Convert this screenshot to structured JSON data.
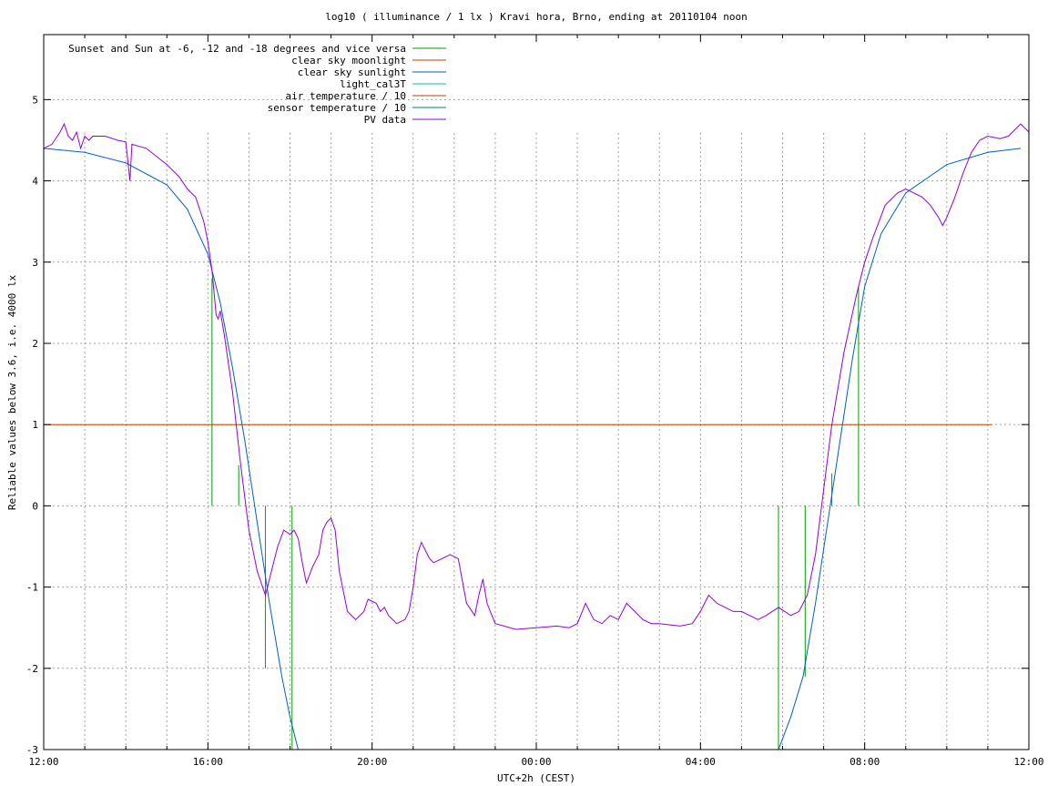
{
  "chart_data": {
    "type": "line",
    "title": "log10 ( illuminance / 1 lx ) Kravi hora, Brno, ending at 20110104 noon",
    "xlabel": "UTC+2h (CEST)",
    "ylabel": "Reliable values below 3.6, i.e. 4000 lx",
    "xlim": [
      0,
      24
    ],
    "ylim": [
      -3,
      5.8
    ],
    "grid": true,
    "legend_position": "top-left",
    "x_ticks": [
      {
        "x": 0,
        "label": "12:00"
      },
      {
        "x": 4,
        "label": "16:00"
      },
      {
        "x": 8,
        "label": "20:00"
      },
      {
        "x": 12,
        "label": "00:00"
      },
      {
        "x": 16,
        "label": "04:00"
      },
      {
        "x": 20,
        "label": "08:00"
      },
      {
        "x": 24,
        "label": "12:00"
      }
    ],
    "y_ticks": [
      {
        "y": -3,
        "label": "-3"
      },
      {
        "y": -2,
        "label": "-2"
      },
      {
        "y": -1,
        "label": "-1"
      },
      {
        "y": 0,
        "label": "0"
      },
      {
        "y": 1,
        "label": "1"
      },
      {
        "y": 2,
        "label": "2"
      },
      {
        "y": 3,
        "label": "3"
      },
      {
        "y": 4,
        "label": "4"
      },
      {
        "y": 5,
        "label": "5"
      }
    ],
    "series": [
      {
        "name": "Sunset and Sun at -6, -12 and -18 degrees and vice versa",
        "color": "#00a000",
        "style": "impulses",
        "base": 0,
        "points": [
          [
            4.1,
            2.8
          ],
          [
            4.75,
            0.5
          ],
          [
            5.4,
            -2.0
          ],
          [
            6.05,
            -3.0
          ],
          [
            17.9,
            -3.0
          ],
          [
            18.55,
            -2.1
          ],
          [
            19.2,
            0.4
          ],
          [
            19.85,
            2.7
          ]
        ]
      },
      {
        "name": "clear sky moonlight",
        "color": "#c04000",
        "points": [
          [
            0,
            1.0
          ],
          [
            23.1,
            1.0
          ]
        ]
      },
      {
        "name": "clear sky sunlight",
        "color": "#0060c0",
        "points": [
          [
            0,
            4.4
          ],
          [
            1,
            4.35
          ],
          [
            2,
            4.22
          ],
          [
            3,
            3.95
          ],
          [
            3.5,
            3.65
          ],
          [
            4.0,
            3.1
          ],
          [
            4.3,
            2.5
          ],
          [
            4.6,
            1.7
          ],
          [
            4.9,
            0.8
          ],
          [
            5.2,
            -0.2
          ],
          [
            5.5,
            -1.2
          ],
          [
            5.8,
            -2.1
          ],
          [
            6.0,
            -2.6
          ],
          [
            6.2,
            -3.0
          ],
          [
            17.9,
            -3.0
          ],
          [
            18.2,
            -2.6
          ],
          [
            18.5,
            -2.1
          ],
          [
            18.8,
            -1.2
          ],
          [
            19.1,
            -0.2
          ],
          [
            19.4,
            0.8
          ],
          [
            19.7,
            1.8
          ],
          [
            20.0,
            2.7
          ],
          [
            20.4,
            3.35
          ],
          [
            21,
            3.85
          ],
          [
            22,
            4.2
          ],
          [
            23,
            4.35
          ],
          [
            23.8,
            4.4
          ]
        ]
      },
      {
        "name": "light_cal3T",
        "color": "#00c0c0",
        "points": []
      },
      {
        "name": "air temperature / 10",
        "color": "#c04000",
        "points": []
      },
      {
        "name": "sensor temperature / 10",
        "color": "#008080",
        "points": []
      },
      {
        "name": "PV data",
        "color": "#9400d3",
        "points": [
          [
            0,
            4.4
          ],
          [
            0.2,
            4.45
          ],
          [
            0.4,
            4.6
          ],
          [
            0.5,
            4.7
          ],
          [
            0.6,
            4.55
          ],
          [
            0.7,
            4.5
          ],
          [
            0.8,
            4.6
          ],
          [
            0.9,
            4.4
          ],
          [
            1.0,
            4.55
          ],
          [
            1.1,
            4.5
          ],
          [
            1.2,
            4.55
          ],
          [
            1.5,
            4.55
          ],
          [
            1.8,
            4.5
          ],
          [
            2.0,
            4.48
          ],
          [
            2.1,
            4.0
          ],
          [
            2.15,
            4.45
          ],
          [
            2.5,
            4.4
          ],
          [
            3.0,
            4.2
          ],
          [
            3.3,
            4.05
          ],
          [
            3.5,
            3.9
          ],
          [
            3.7,
            3.8
          ],
          [
            3.9,
            3.5
          ],
          [
            4.0,
            3.25
          ],
          [
            4.1,
            2.9
          ],
          [
            4.2,
            2.35
          ],
          [
            4.25,
            2.3
          ],
          [
            4.3,
            2.4
          ],
          [
            4.4,
            2.1
          ],
          [
            4.6,
            1.4
          ],
          [
            4.8,
            0.5
          ],
          [
            5.0,
            -0.3
          ],
          [
            5.2,
            -0.8
          ],
          [
            5.4,
            -1.1
          ],
          [
            5.55,
            -0.8
          ],
          [
            5.7,
            -0.5
          ],
          [
            5.85,
            -0.3
          ],
          [
            6.0,
            -0.35
          ],
          [
            6.1,
            -0.3
          ],
          [
            6.2,
            -0.4
          ],
          [
            6.3,
            -0.7
          ],
          [
            6.4,
            -0.95
          ],
          [
            6.55,
            -0.75
          ],
          [
            6.7,
            -0.6
          ],
          [
            6.8,
            -0.3
          ],
          [
            6.9,
            -0.2
          ],
          [
            7.0,
            -0.15
          ],
          [
            7.1,
            -0.3
          ],
          [
            7.2,
            -0.8
          ],
          [
            7.4,
            -1.3
          ],
          [
            7.6,
            -1.4
          ],
          [
            7.8,
            -1.3
          ],
          [
            7.9,
            -1.15
          ],
          [
            8.1,
            -1.2
          ],
          [
            8.2,
            -1.3
          ],
          [
            8.3,
            -1.25
          ],
          [
            8.4,
            -1.35
          ],
          [
            8.6,
            -1.45
          ],
          [
            8.8,
            -1.4
          ],
          [
            8.9,
            -1.3
          ],
          [
            9.0,
            -1.0
          ],
          [
            9.1,
            -0.6
          ],
          [
            9.2,
            -0.45
          ],
          [
            9.4,
            -0.65
          ],
          [
            9.5,
            -0.7
          ],
          [
            9.7,
            -0.65
          ],
          [
            9.9,
            -0.6
          ],
          [
            10.1,
            -0.65
          ],
          [
            10.3,
            -1.2
          ],
          [
            10.5,
            -1.35
          ],
          [
            10.6,
            -1.1
          ],
          [
            10.7,
            -0.9
          ],
          [
            10.8,
            -1.2
          ],
          [
            11.0,
            -1.45
          ],
          [
            11.5,
            -1.52
          ],
          [
            12.0,
            -1.5
          ],
          [
            12.5,
            -1.48
          ],
          [
            12.8,
            -1.5
          ],
          [
            13.0,
            -1.45
          ],
          [
            13.2,
            -1.2
          ],
          [
            13.4,
            -1.4
          ],
          [
            13.6,
            -1.45
          ],
          [
            13.8,
            -1.35
          ],
          [
            14.0,
            -1.4
          ],
          [
            14.2,
            -1.2
          ],
          [
            14.4,
            -1.3
          ],
          [
            14.6,
            -1.4
          ],
          [
            14.8,
            -1.45
          ],
          [
            15.0,
            -1.45
          ],
          [
            15.5,
            -1.48
          ],
          [
            15.8,
            -1.45
          ],
          [
            16.0,
            -1.3
          ],
          [
            16.2,
            -1.1
          ],
          [
            16.4,
            -1.2
          ],
          [
            16.6,
            -1.25
          ],
          [
            16.8,
            -1.3
          ],
          [
            17.0,
            -1.3
          ],
          [
            17.2,
            -1.35
          ],
          [
            17.4,
            -1.4
          ],
          [
            17.6,
            -1.35
          ],
          [
            17.9,
            -1.25
          ],
          [
            18.2,
            -1.35
          ],
          [
            18.4,
            -1.3
          ],
          [
            18.6,
            -1.1
          ],
          [
            18.8,
            -0.6
          ],
          [
            19.0,
            0.2
          ],
          [
            19.2,
            1.0
          ],
          [
            19.5,
            1.9
          ],
          [
            19.8,
            2.6
          ],
          [
            20.0,
            3.0
          ],
          [
            20.2,
            3.3
          ],
          [
            20.5,
            3.7
          ],
          [
            20.8,
            3.85
          ],
          [
            21.0,
            3.9
          ],
          [
            21.2,
            3.85
          ],
          [
            21.4,
            3.8
          ],
          [
            21.6,
            3.7
          ],
          [
            21.8,
            3.55
          ],
          [
            21.9,
            3.45
          ],
          [
            22.0,
            3.55
          ],
          [
            22.2,
            3.8
          ],
          [
            22.4,
            4.1
          ],
          [
            22.6,
            4.35
          ],
          [
            22.8,
            4.5
          ],
          [
            23.0,
            4.55
          ],
          [
            23.3,
            4.52
          ],
          [
            23.5,
            4.55
          ],
          [
            23.6,
            4.6
          ],
          [
            23.8,
            4.7
          ],
          [
            23.9,
            4.65
          ],
          [
            24.0,
            4.6
          ]
        ]
      }
    ]
  }
}
